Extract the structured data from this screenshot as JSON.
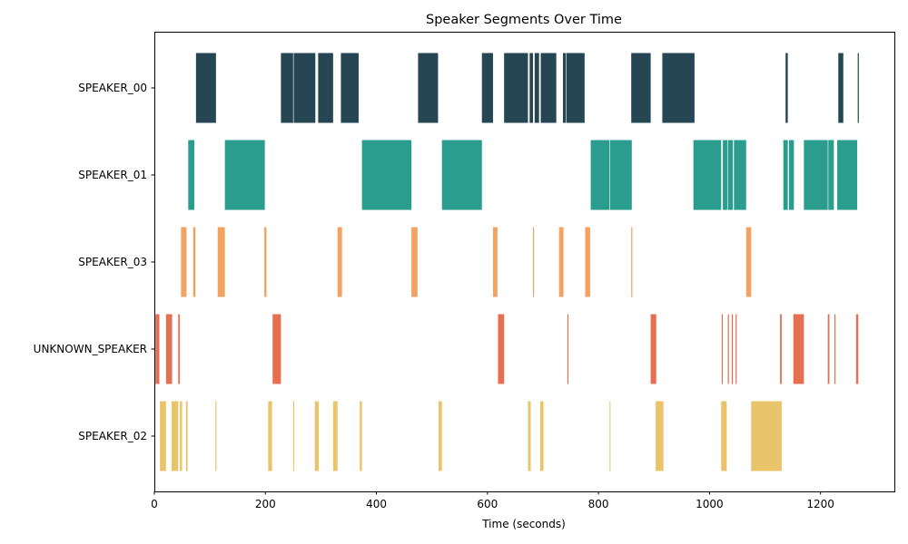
{
  "chart_data": {
    "type": "timeline",
    "title": "Speaker Segments Over Time",
    "xlabel": "Time (seconds)",
    "ylabel": "",
    "xlim": [
      0,
      1333
    ],
    "xticks": [
      0,
      200,
      400,
      600,
      800,
      1000,
      1200
    ],
    "grid": false,
    "legend": "none",
    "series": [
      {
        "name": "SPEAKER_00",
        "color": "#264653",
        "segments": [
          [
            75,
            111
          ],
          [
            228,
            250
          ],
          [
            251,
            290
          ],
          [
            295,
            322
          ],
          [
            336,
            368
          ],
          [
            475,
            511
          ],
          [
            590,
            610
          ],
          [
            630,
            673
          ],
          [
            676,
            682
          ],
          [
            685,
            693
          ],
          [
            696,
            724
          ],
          [
            736,
            741
          ],
          [
            742,
            775
          ],
          [
            859,
            894
          ],
          [
            915,
            973
          ],
          [
            1137,
            1141
          ],
          [
            1232,
            1241
          ],
          [
            1267,
            1269
          ]
        ]
      },
      {
        "name": "SPEAKER_01",
        "color": "#2a9d8f",
        "segments": [
          [
            61,
            72
          ],
          [
            127,
            199
          ],
          [
            374,
            463
          ],
          [
            518,
            590
          ],
          [
            786,
            820
          ],
          [
            821,
            860
          ],
          [
            971,
            1021
          ],
          [
            1024,
            1032
          ],
          [
            1033,
            1042
          ],
          [
            1044,
            1066
          ],
          [
            1133,
            1141
          ],
          [
            1143,
            1152
          ],
          [
            1170,
            1213
          ],
          [
            1214,
            1224
          ],
          [
            1230,
            1266
          ]
        ]
      },
      {
        "name": "SPEAKER_03",
        "color": "#f4a261",
        "segments": [
          [
            48,
            58
          ],
          [
            70,
            74
          ],
          [
            114,
            127
          ],
          [
            198,
            202
          ],
          [
            330,
            338
          ],
          [
            463,
            474
          ],
          [
            610,
            618
          ],
          [
            682,
            684
          ],
          [
            729,
            737
          ],
          [
            776,
            785
          ],
          [
            859,
            861
          ],
          [
            1066,
            1075
          ]
        ]
      },
      {
        "name": "UNKNOWN_SPEAKER",
        "color": "#e76f51",
        "segments": [
          [
            2,
            9
          ],
          [
            21,
            32
          ],
          [
            43,
            46
          ],
          [
            213,
            228
          ],
          [
            619,
            630
          ],
          [
            744,
            746
          ],
          [
            894,
            904
          ],
          [
            1022,
            1024
          ],
          [
            1033,
            1035
          ],
          [
            1040,
            1042
          ],
          [
            1047,
            1049
          ],
          [
            1127,
            1130
          ],
          [
            1151,
            1170
          ],
          [
            1213,
            1216
          ],
          [
            1225,
            1227
          ],
          [
            1264,
            1268
          ]
        ]
      },
      {
        "name": "SPEAKER_02",
        "color": "#e9c46a",
        "segments": [
          [
            10,
            21
          ],
          [
            31,
            43
          ],
          [
            46,
            50
          ],
          [
            57,
            60
          ],
          [
            110,
            112
          ],
          [
            205,
            212
          ],
          [
            250,
            252
          ],
          [
            289,
            296
          ],
          [
            322,
            330
          ],
          [
            370,
            374
          ],
          [
            512,
            518
          ],
          [
            673,
            678
          ],
          [
            695,
            701
          ],
          [
            820,
            821
          ],
          [
            903,
            917
          ],
          [
            1021,
            1031
          ],
          [
            1075,
            1130
          ]
        ]
      }
    ]
  }
}
